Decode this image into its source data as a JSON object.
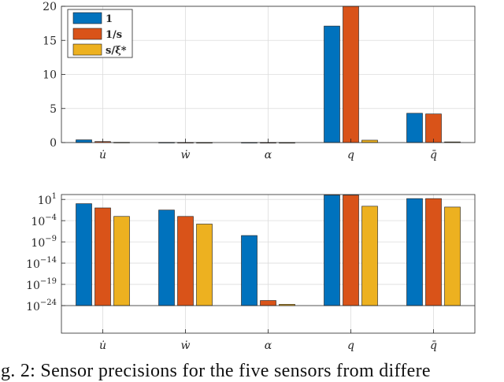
{
  "caption": "ig. 2: Sensor precisions for the five sensors from differe",
  "colors": {
    "1": "#0072BD",
    "1/s": "#D95319",
    "s/xi": "#EDB120"
  },
  "chart_data": [
    {
      "type": "bar",
      "scale": "linear",
      "categories": [
        "u̇",
        "ẇ",
        "α",
        "q",
        "q̄"
      ],
      "ylim": [
        0,
        20
      ],
      "yticks": [
        0,
        5,
        10,
        15,
        20
      ],
      "ytick_labels": [
        "0",
        "5",
        "10",
        "15",
        "20"
      ],
      "grid": true,
      "legend": "top-left",
      "series": [
        {
          "name": "1",
          "color_key": "1",
          "values": [
            0.4,
            0.03,
            0.02,
            17.1,
            4.3
          ]
        },
        {
          "name": "1/s",
          "color_key": "1/s",
          "values": [
            0.15,
            0.02,
            0.01,
            20.3,
            4.2
          ]
        },
        {
          "name": "s/ξ*",
          "color_key": "s/xi",
          "values": [
            0.04,
            0.01,
            0.005,
            0.35,
            0.1
          ]
        }
      ]
    },
    {
      "type": "bar",
      "scale": "log",
      "categories": [
        "u̇",
        "ẇ",
        "α",
        "q",
        "q̄"
      ],
      "ylim_log10": [
        -24,
        1
      ],
      "yticks_log10": [
        1,
        -4,
        -9,
        -14,
        -19,
        -24
      ],
      "ytick_labels": [
        {
          "base": "10",
          "exp": "1"
        },
        {
          "base": "10",
          "exp": "−4"
        },
        {
          "base": "10",
          "exp": "−9"
        },
        {
          "base": "10",
          "exp": "−14"
        },
        {
          "base": "10",
          "exp": "−19"
        },
        {
          "base": "10",
          "exp": "−24"
        }
      ],
      "grid": true,
      "series_log10": [
        {
          "name": "1",
          "color_key": "1",
          "values": [
            0,
            -1.5,
            -7.5,
            2.0,
            1.2
          ]
        },
        {
          "name": "1/s",
          "color_key": "1/s",
          "values": [
            -1,
            -3,
            -22.8,
            2.0,
            1.2
          ]
        },
        {
          "name": "s/ξ*",
          "color_key": "s/xi",
          "values": [
            -3,
            -4.8,
            -23.7,
            -0.6,
            -0.8
          ]
        }
      ]
    }
  ]
}
